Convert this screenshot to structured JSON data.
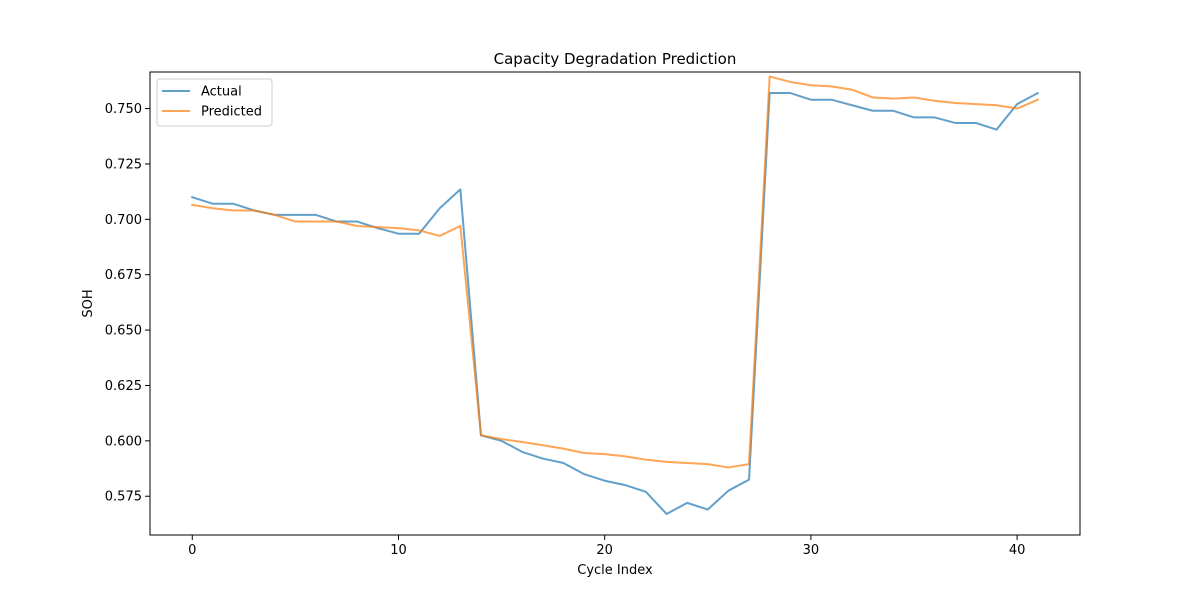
{
  "chart_data": {
    "type": "line",
    "title": "Capacity Degradation Prediction",
    "xlabel": "Cycle Index",
    "ylabel": "SOH",
    "xlim": [
      -2.05,
      43.05
    ],
    "ylim": [
      0.5575,
      0.7665
    ],
    "xticks": [
      0,
      10,
      20,
      30,
      40
    ],
    "yticks": [
      0.575,
      0.6,
      0.625,
      0.65,
      0.675,
      0.7,
      0.725,
      0.75
    ],
    "ytick_format": 3,
    "grid": false,
    "legend_position": "upper-left",
    "x": [
      0,
      1,
      2,
      3,
      4,
      5,
      6,
      7,
      8,
      9,
      10,
      11,
      12,
      13,
      14,
      15,
      16,
      17,
      18,
      19,
      20,
      21,
      22,
      23,
      24,
      25,
      26,
      27,
      28,
      29,
      30,
      31,
      32,
      33,
      34,
      35,
      36,
      37,
      38,
      39,
      40,
      41
    ],
    "series": [
      {
        "name": "Actual",
        "color": "#1f77b4",
        "values": [
          0.71,
          0.707,
          0.707,
          0.704,
          0.702,
          0.702,
          0.702,
          0.699,
          0.699,
          0.696,
          0.6935,
          0.6935,
          0.705,
          0.7135,
          0.6025,
          0.6,
          0.595,
          0.592,
          0.59,
          0.585,
          0.582,
          0.58,
          0.577,
          0.567,
          0.572,
          0.569,
          0.5775,
          0.5825,
          0.757,
          0.757,
          0.754,
          0.754,
          0.7515,
          0.749,
          0.749,
          0.746,
          0.746,
          0.7435,
          0.7435,
          0.7405,
          0.752,
          0.757
        ]
      },
      {
        "name": "Predicted",
        "color": "#ff7f0e",
        "values": [
          0.7065,
          0.705,
          0.704,
          0.704,
          0.702,
          0.699,
          0.699,
          0.699,
          0.697,
          0.6965,
          0.696,
          0.695,
          0.6925,
          0.697,
          0.6025,
          0.6008,
          0.5995,
          0.598,
          0.5965,
          0.5945,
          0.594,
          0.593,
          0.5915,
          0.5905,
          0.59,
          0.5895,
          0.588,
          0.5895,
          0.7645,
          0.762,
          0.7605,
          0.76,
          0.7585,
          0.755,
          0.7545,
          0.755,
          0.7535,
          0.7525,
          0.752,
          0.7515,
          0.75,
          0.754
        ]
      }
    ]
  }
}
